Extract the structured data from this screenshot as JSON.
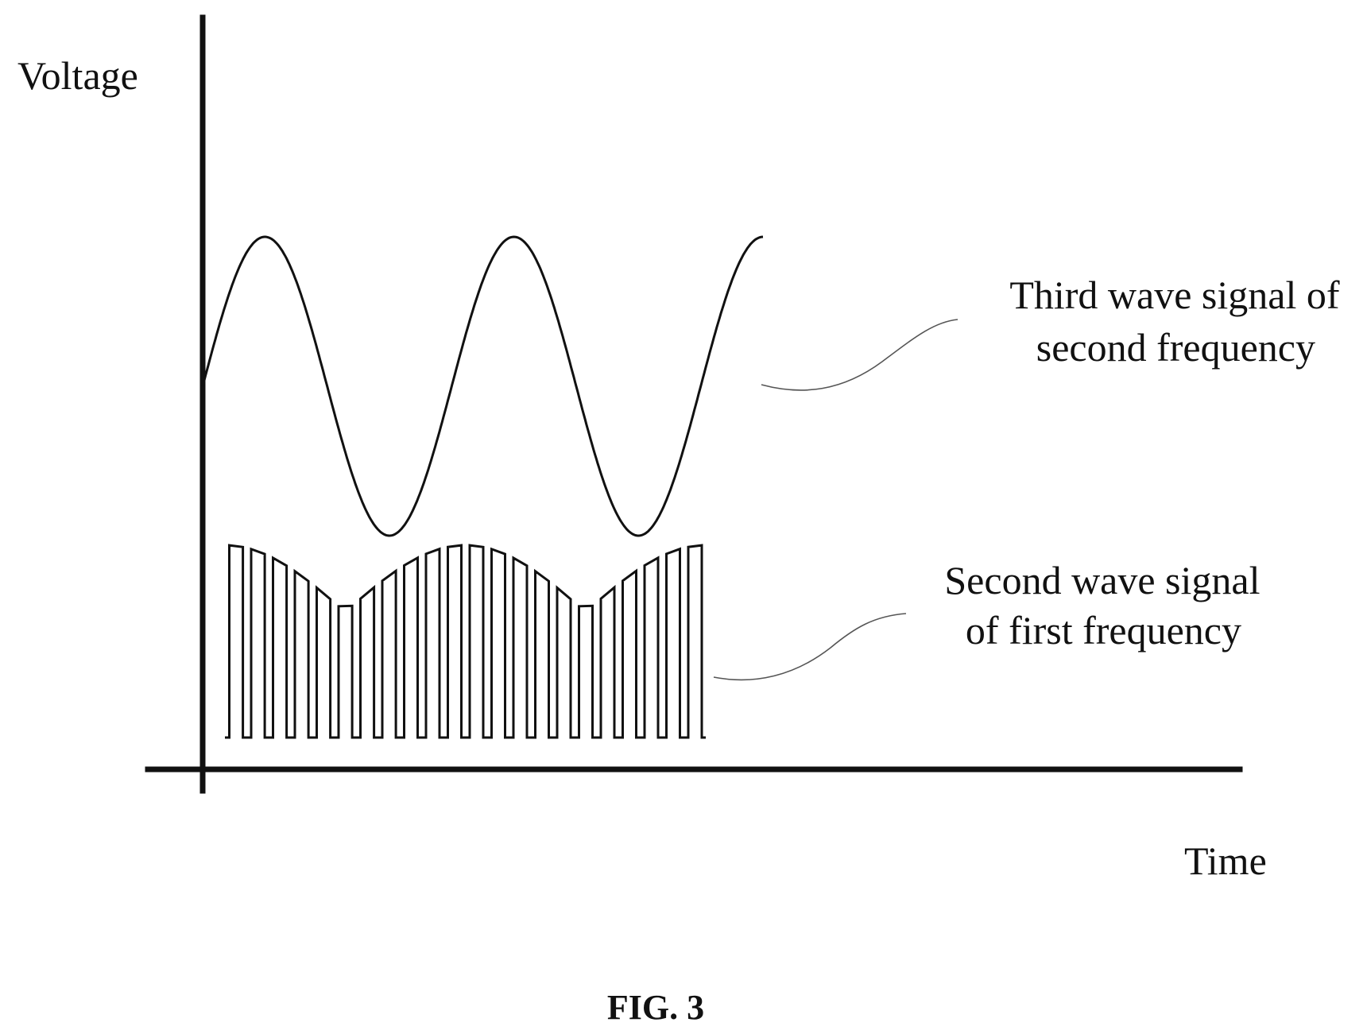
{
  "figure": {
    "caption": "FIG. 3",
    "y_axis_label": "Voltage",
    "x_axis_label": "Time",
    "callouts": {
      "third_wave": {
        "line1": "Third wave signal of",
        "line2": "second frequency"
      },
      "second_wave": {
        "line1": "Second wave signal",
        "line2": "of first frequency"
      }
    },
    "third_wave_signal": {
      "shape": "sinusoid",
      "cycles": 2.25
    },
    "second_wave_signal": {
      "shape": "pulse-width-modulated",
      "pulse_count": 22,
      "envelope": "rectified sinusoid"
    }
  }
}
